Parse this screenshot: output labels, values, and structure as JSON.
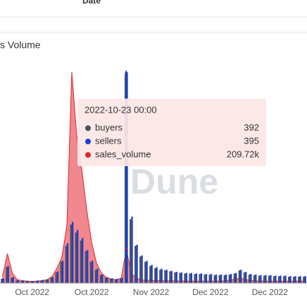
{
  "table": {
    "column": "Date"
  },
  "chart_data": {
    "type": "bar",
    "title": "s Volume",
    "watermark": "Dune",
    "categories": [
      null,
      null,
      null,
      null,
      null,
      null,
      "Oct 2022",
      null,
      null,
      null,
      null,
      null,
      null,
      null,
      null,
      null,
      null,
      null,
      "Oct 2022",
      null,
      null,
      null,
      null,
      null,
      null,
      null,
      null,
      null,
      null,
      null,
      "Nov 2022",
      null,
      null,
      null,
      null,
      null,
      null,
      null,
      null,
      null,
      null,
      null,
      "Dec 2022",
      null,
      null,
      null,
      null,
      null,
      null,
      null,
      null,
      null,
      null,
      null,
      "Dec 2022",
      null,
      null,
      null,
      null,
      null,
      null,
      null
    ],
    "ylim": [
      0,
      400
    ],
    "y2lim": [
      0,
      1300
    ],
    "series": [
      {
        "name": "buyers",
        "color": "#4b4f5c",
        "values": [
          8,
          30,
          10,
          5,
          4,
          4,
          3,
          4,
          5,
          6,
          10,
          20,
          40,
          70,
          110,
          95,
          80,
          60,
          40,
          25,
          15,
          10,
          8,
          7,
          9,
          392,
          120,
          70,
          50,
          40,
          32,
          28,
          25,
          24,
          22,
          20,
          19,
          18,
          18,
          17,
          17,
          16,
          16,
          15,
          15,
          15,
          16,
          18,
          24,
          20,
          16,
          15,
          14,
          14,
          14,
          13,
          13,
          13,
          12,
          12,
          12,
          12
        ]
      },
      {
        "name": "sellers",
        "color": "#1c3fc9",
        "values": [
          9,
          32,
          11,
          6,
          5,
          4,
          4,
          5,
          6,
          7,
          11,
          22,
          42,
          75,
          115,
          100,
          85,
          62,
          42,
          27,
          16,
          11,
          9,
          8,
          10,
          395,
          125,
          72,
          52,
          42,
          34,
          30,
          27,
          25,
          23,
          21,
          20,
          19,
          19,
          18,
          18,
          17,
          17,
          16,
          16,
          16,
          17,
          19,
          25,
          21,
          17,
          16,
          15,
          15,
          15,
          14,
          14,
          14,
          13,
          13,
          13,
          13
        ]
      },
      {
        "name": "sales_volume",
        "color": "#e3262f",
        "axis": "y2",
        "values": [
          40,
          180,
          60,
          20,
          15,
          12,
          10,
          12,
          15,
          20,
          40,
          90,
          160,
          350,
          1290,
          900,
          700,
          450,
          250,
          120,
          60,
          35,
          25,
          20,
          30,
          209.72,
          60,
          30,
          20,
          18,
          16,
          15,
          15,
          14,
          14,
          13,
          13,
          13,
          12,
          12,
          12,
          12,
          12,
          12,
          12,
          14,
          18,
          24,
          30,
          22,
          16,
          14,
          13,
          13,
          12,
          12,
          12,
          12,
          12,
          12,
          12,
          12
        ]
      }
    ],
    "tooltip": {
      "title": "2022-10-23 00:00",
      "values": [
        392,
        395,
        209.72
      ],
      "value_labels": [
        "392",
        "395",
        "209.72k"
      ]
    }
  }
}
